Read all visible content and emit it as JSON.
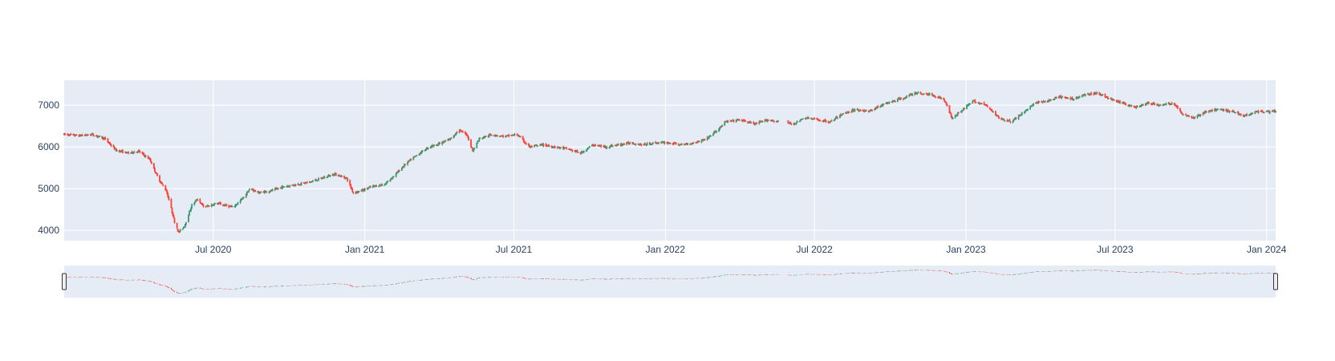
{
  "chart_data": {
    "type": "candlestick",
    "title": "",
    "xlabel": "",
    "ylabel": "",
    "x_range": [
      "2020-01-02",
      "2024-01-12"
    ],
    "ylim": [
      3750,
      7600
    ],
    "y_ticks": [
      4000,
      5000,
      6000,
      7000
    ],
    "y_tick_labels": [
      "4000",
      "5000",
      "6000",
      "7000"
    ],
    "x_ticks": [
      "2020-07-01",
      "2021-01-01",
      "2021-07-01",
      "2022-01-01",
      "2022-07-01",
      "2023-01-01",
      "2023-07-01",
      "2024-01-01"
    ],
    "x_tick_labels": [
      "Jul 2020",
      "Jan 2021",
      "Jul 2021",
      "Jan 2022",
      "Jul 2022",
      "Jan 2023",
      "Jul 2023",
      "Jan 2024"
    ],
    "increasing_color": "#3D9970",
    "decreasing_color": "#FF4136",
    "plot_background": "#E5ECF6",
    "grid": true,
    "rangeslider": true,
    "close_path": [
      [
        "2020-01-02",
        6300
      ],
      [
        "2020-01-20",
        6270
      ],
      [
        "2020-02-05",
        6300
      ],
      [
        "2020-02-20",
        6200
      ],
      [
        "2020-03-05",
        5920
      ],
      [
        "2020-03-20",
        5850
      ],
      [
        "2020-04-01",
        5900
      ],
      [
        "2020-04-15",
        5700
      ],
      [
        "2020-04-25",
        5250
      ],
      [
        "2020-05-05",
        4950
      ],
      [
        "2020-05-10",
        4600
      ],
      [
        "2020-05-15",
        4200
      ],
      [
        "2020-05-20",
        3950
      ],
      [
        "2020-05-27",
        4100
      ],
      [
        "2020-06-05",
        4600
      ],
      [
        "2020-06-12",
        4750
      ],
      [
        "2020-06-20",
        4550
      ],
      [
        "2020-07-05",
        4650
      ],
      [
        "2020-07-15",
        4600
      ],
      [
        "2020-07-25",
        4550
      ],
      [
        "2020-08-05",
        4750
      ],
      [
        "2020-08-15",
        5000
      ],
      [
        "2020-08-25",
        4900
      ],
      [
        "2020-09-10",
        4950
      ],
      [
        "2020-09-25",
        5050
      ],
      [
        "2020-10-10",
        5100
      ],
      [
        "2020-10-25",
        5150
      ],
      [
        "2020-11-10",
        5250
      ],
      [
        "2020-11-25",
        5350
      ],
      [
        "2020-12-10",
        5250
      ],
      [
        "2020-12-18",
        4900
      ],
      [
        "2020-12-28",
        4950
      ],
      [
        "2021-01-10",
        5050
      ],
      [
        "2021-01-25",
        5100
      ],
      [
        "2021-02-05",
        5300
      ],
      [
        "2021-02-20",
        5600
      ],
      [
        "2021-03-05",
        5800
      ],
      [
        "2021-03-20",
        6000
      ],
      [
        "2021-04-05",
        6100
      ],
      [
        "2021-04-15",
        6200
      ],
      [
        "2021-04-25",
        6400
      ],
      [
        "2021-05-05",
        6300
      ],
      [
        "2021-05-12",
        5900
      ],
      [
        "2021-05-20",
        6200
      ],
      [
        "2021-06-05",
        6300
      ],
      [
        "2021-06-20",
        6250
      ],
      [
        "2021-07-05",
        6300
      ],
      [
        "2021-07-20",
        6000
      ],
      [
        "2021-08-05",
        6050
      ],
      [
        "2021-08-20",
        6000
      ],
      [
        "2021-09-05",
        5950
      ],
      [
        "2021-09-20",
        5850
      ],
      [
        "2021-10-05",
        6050
      ],
      [
        "2021-10-20",
        6000
      ],
      [
        "2021-11-05",
        6050
      ],
      [
        "2021-11-20",
        6100
      ],
      [
        "2021-12-05",
        6050
      ],
      [
        "2021-12-20",
        6100
      ],
      [
        "2022-01-05",
        6100
      ],
      [
        "2022-01-20",
        6050
      ],
      [
        "2022-02-05",
        6100
      ],
      [
        "2022-02-20",
        6200
      ],
      [
        "2022-03-05",
        6400
      ],
      [
        "2022-03-15",
        6600
      ],
      [
        "2022-04-01",
        6650
      ],
      [
        "2022-04-20",
        6550
      ],
      [
        "2022-05-05",
        6650
      ],
      [
        "2022-05-20",
        6600
      ],
      [
        "2022-06-05",
        6550
      ],
      [
        "2022-06-20",
        6700
      ],
      [
        "2022-07-05",
        6650
      ],
      [
        "2022-07-20",
        6600
      ],
      [
        "2022-08-05",
        6800
      ],
      [
        "2022-08-20",
        6900
      ],
      [
        "2022-09-05",
        6850
      ],
      [
        "2022-09-20",
        7000
      ],
      [
        "2022-10-05",
        7100
      ],
      [
        "2022-10-20",
        7200
      ],
      [
        "2022-11-01",
        7300
      ],
      [
        "2022-11-20",
        7250
      ],
      [
        "2022-12-05",
        7150
      ],
      [
        "2022-12-15",
        6700
      ],
      [
        "2022-12-28",
        6900
      ],
      [
        "2023-01-10",
        7100
      ],
      [
        "2023-01-25",
        7000
      ],
      [
        "2023-02-10",
        6700
      ],
      [
        "2023-02-25",
        6600
      ],
      [
        "2023-03-10",
        6800
      ],
      [
        "2023-03-25",
        7050
      ],
      [
        "2023-04-10",
        7100
      ],
      [
        "2023-04-25",
        7200
      ],
      [
        "2023-05-10",
        7150
      ],
      [
        "2023-05-25",
        7250
      ],
      [
        "2023-06-10",
        7300
      ],
      [
        "2023-06-25",
        7150
      ],
      [
        "2023-07-10",
        7050
      ],
      [
        "2023-07-25",
        6950
      ],
      [
        "2023-08-10",
        7050
      ],
      [
        "2023-08-25",
        7000
      ],
      [
        "2023-09-10",
        7050
      ],
      [
        "2023-09-20",
        6800
      ],
      [
        "2023-10-05",
        6700
      ],
      [
        "2023-10-20",
        6850
      ],
      [
        "2023-11-05",
        6900
      ],
      [
        "2023-11-20",
        6850
      ],
      [
        "2023-12-05",
        6750
      ],
      [
        "2023-12-20",
        6850
      ]
    ]
  }
}
